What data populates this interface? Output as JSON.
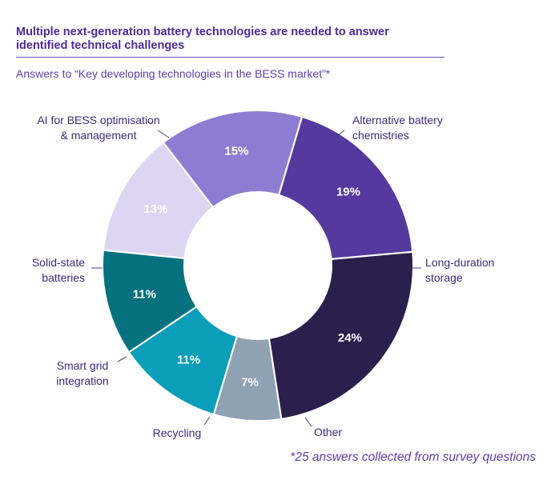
{
  "header": {
    "title_line1": "Multiple next-generation battery technologies are needed to answer",
    "title_line2": "identified technical challenges",
    "subtitle": "Answers to “Key developing technologies in the BESS market”*"
  },
  "footnote": "*25 answers collected from survey questions",
  "chart_data": {
    "type": "pie",
    "donut": true,
    "title": "Multiple next-generation battery technologies are needed to answer identified technical challenges",
    "subtitle": "Answers to “Key developing technologies in the BESS market”*",
    "unit": "%",
    "slices": [
      {
        "name": "Alternative battery chemistries",
        "label_lines": [
          "Alternative battery",
          "chemistries"
        ],
        "value": 19,
        "label": "19%",
        "color": "#55399e"
      },
      {
        "name": "Long-duration storage",
        "label_lines": [
          "Long-duration",
          "storage"
        ],
        "value": 24,
        "label": "24%",
        "color": "#2b1f4d"
      },
      {
        "name": "Other",
        "label_lines": [
          "Other"
        ],
        "value": 7,
        "label": "7%",
        "color": "#8fa2b4"
      },
      {
        "name": "Recycling",
        "label_lines": [
          "Recycling"
        ],
        "value": 11,
        "label": "11%",
        "color": "#0a9eb8"
      },
      {
        "name": "Smart grid integration",
        "label_lines": [
          "Smart grid",
          "integration"
        ],
        "value": 11,
        "label": "11%",
        "color": "#05717f"
      },
      {
        "name": "Solid-state batteries",
        "label_lines": [
          "Solid-state",
          "batteries"
        ],
        "value": 13,
        "label": "13%",
        "color": "#dcd6f3"
      },
      {
        "name": "AI for BESS optimisation & management",
        "label_lines": [
          "AI for BESS optimisation",
          "& management"
        ],
        "value": 15,
        "label": "15%",
        "color": "#8d7dd2"
      }
    ]
  }
}
